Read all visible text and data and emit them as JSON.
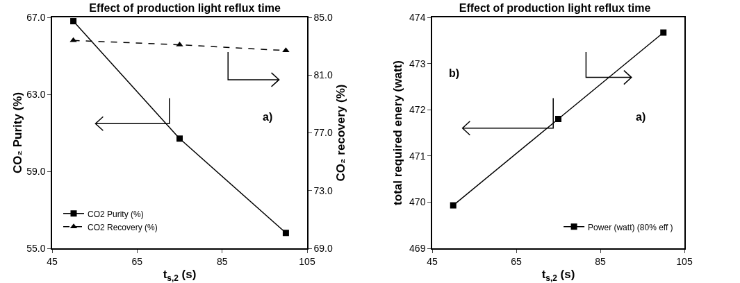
{
  "chart_data": [
    {
      "type": "line",
      "title": "Effect of production light reflux time",
      "xlabel": "t$_{s,2}$ (s)",
      "ylabel": "CO₂ Purity (%)",
      "y2label": "CO₂ recovery (%)",
      "x": [
        50,
        75,
        100
      ],
      "series": [
        {
          "name": "CO2 Purity (%)",
          "color": "#000000",
          "values": [
            66.8,
            60.7,
            55.8
          ],
          "marker": "square",
          "line_style": "solid"
        },
        {
          "name": "CO2 Recovery (%)",
          "color": "#000000",
          "values": [
            83.4,
            83.1,
            82.7
          ],
          "marker": "triangle",
          "line_style": "dashed",
          "axis": "y2"
        }
      ],
      "xlim": [
        45,
        105
      ],
      "xticks": [
        45,
        65,
        85,
        105
      ],
      "ylim": [
        55,
        67
      ],
      "yticks": [
        {
          "value": 55,
          "label": "55.0"
        },
        {
          "value": 59,
          "label": "59.0"
        },
        {
          "value": 63,
          "label": "63.0"
        },
        {
          "value": 67,
          "label": "67.0"
        }
      ],
      "y2lim": [
        69,
        85
      ],
      "y2ticks": [
        {
          "value": 69,
          "label": "69.0"
        },
        {
          "value": 73,
          "label": "73.0"
        },
        {
          "value": 77,
          "label": "77.0"
        },
        {
          "value": 81,
          "label": "81.0"
        },
        {
          "value": 85,
          "label": "85.0"
        }
      ],
      "annotations": [
        "a)"
      ],
      "grid": false,
      "legend": "bottom left"
    },
    {
      "type": "line",
      "title": "Effect of production light reflux time",
      "xlabel": "t$_{s,2}$ (s)",
      "ylabel": "total required enery (watt)",
      "x": [
        50,
        75,
        100
      ],
      "series": [
        {
          "name": "Power (watt) (80% eff )",
          "color": "#000000",
          "values": [
            469.93,
            471.8,
            473.67
          ],
          "marker": "square",
          "line_style": "solid"
        }
      ],
      "xlim": [
        45,
        105
      ],
      "xticks": [
        45,
        65,
        85,
        105
      ],
      "ylim": [
        469,
        474
      ],
      "yticks": [
        469,
        470,
        471,
        472,
        473,
        474
      ],
      "annotations": [
        "b)",
        "a)"
      ],
      "grid": false,
      "legend": "bottom right"
    }
  ]
}
